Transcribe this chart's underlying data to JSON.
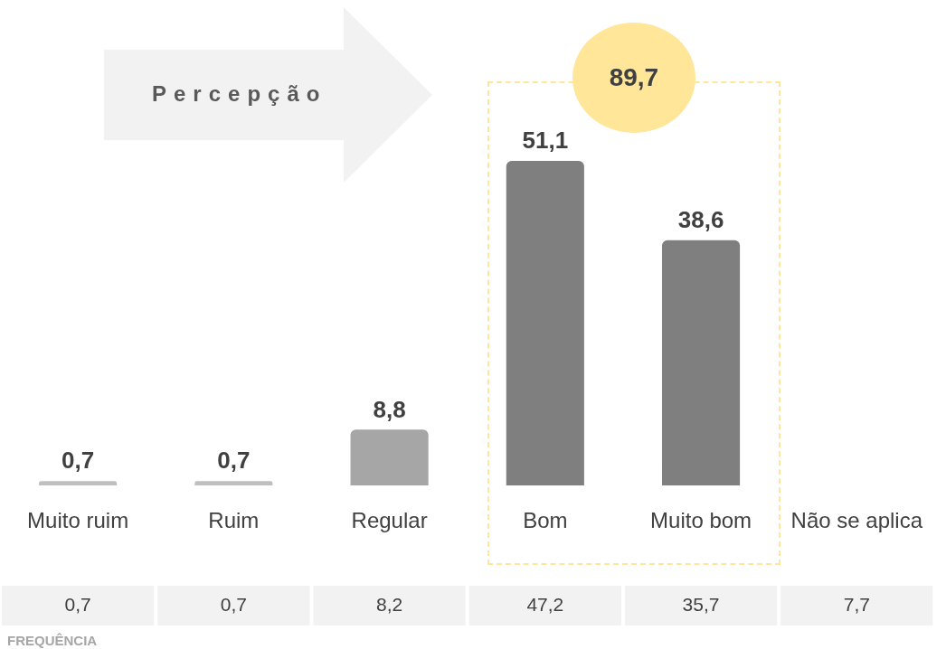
{
  "chart_data": {
    "type": "bar",
    "title": "Percepção",
    "categories": [
      "Muito ruim",
      "Ruim",
      "Regular",
      "Bom",
      "Muito bom",
      "Não se aplica"
    ],
    "values": [
      0.7,
      0.7,
      8.8,
      51.1,
      38.6,
      null
    ],
    "value_labels": [
      "0,7",
      "0,7",
      "8,8",
      "51,1",
      "38,6",
      null
    ],
    "colors": [
      "#bfbfbf",
      "#bfbfbf",
      "#a6a6a6",
      "#7f7f7f",
      "#7f7f7f",
      "#7f7f7f"
    ],
    "grid": false,
    "legend": false,
    "annotations": [
      "89,7",
      "FREQUÊNCIA",
      "0,7",
      "0,7",
      "8,2",
      "47,2",
      "35,7",
      "7,7"
    ]
  }
}
